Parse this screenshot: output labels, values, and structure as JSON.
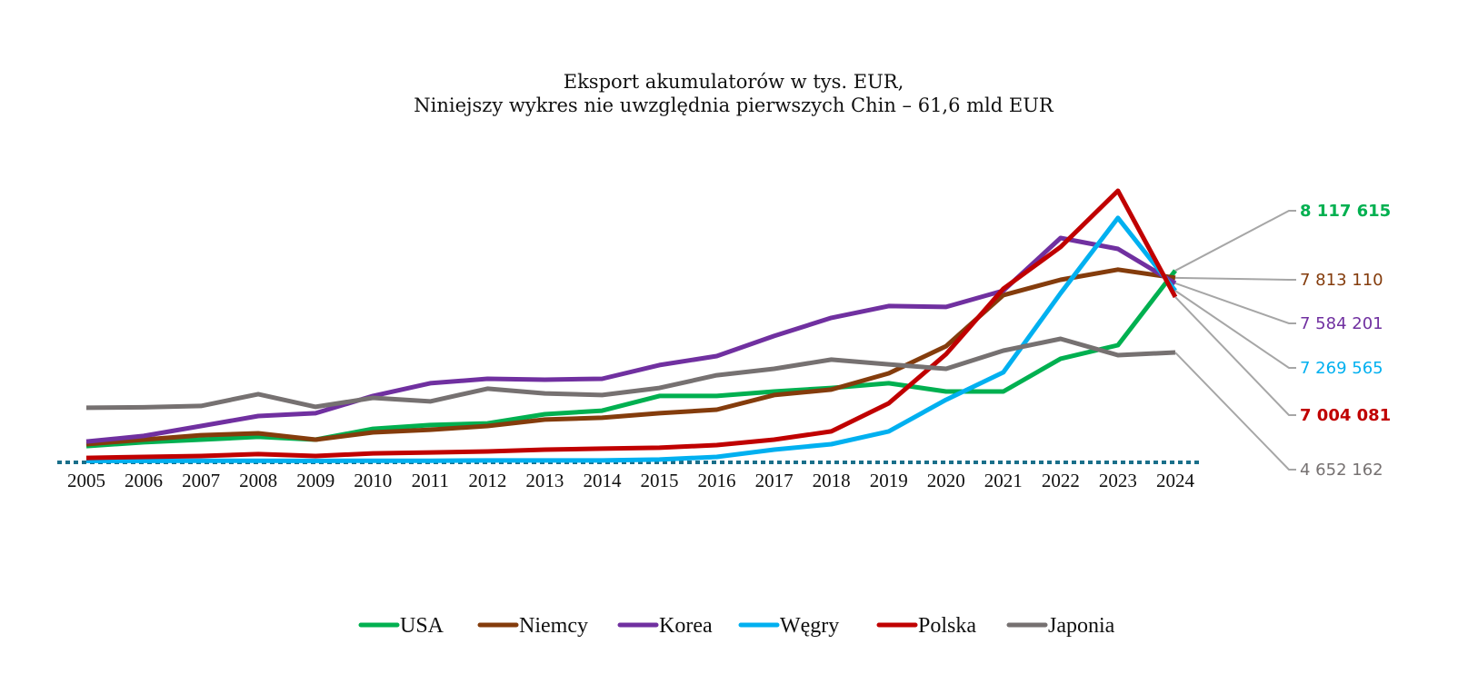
{
  "chart_data": {
    "type": "line",
    "title": "Eksport akumulatorów w tys. EUR,",
    "subtitle": "Niniejszy wykres nie uwzględnia pierwszych Chin – 61,6 mld EUR",
    "xlabel": "",
    "ylabel": "",
    "x": [
      "2005",
      "2006",
      "2007",
      "2008",
      "2009",
      "2010",
      "2011",
      "2012",
      "2013",
      "2014",
      "2015",
      "2016",
      "2017",
      "2018",
      "2019",
      "2020",
      "2021",
      "2022",
      "2023",
      "2024"
    ],
    "ylim": [
      0,
      12000000
    ],
    "grid": false,
    "legend_position": "bottom",
    "baseline_style": "dotted",
    "baseline_color": "#1a6f8a",
    "series": [
      {
        "name": "USA",
        "color": "#00b050",
        "end_label": "8 117 615",
        "end_label_bold": true,
        "values": [
          690000,
          850000,
          960000,
          1080000,
          960000,
          1420000,
          1580000,
          1650000,
          2040000,
          2190000,
          2810000,
          2810000,
          3000000,
          3150000,
          3350000,
          3000000,
          3000000,
          4390000,
          4960000,
          8117615
        ]
      },
      {
        "name": "Niemcy",
        "color": "#843c0c",
        "end_label": "7 813 110",
        "end_label_bold": false,
        "values": [
          770000,
          960000,
          1150000,
          1230000,
          960000,
          1270000,
          1380000,
          1540000,
          1810000,
          1890000,
          2080000,
          2230000,
          2850000,
          3080000,
          3770000,
          4920000,
          7080000,
          7730000,
          8160000,
          7813110
        ]
      },
      {
        "name": "Korea",
        "color": "#7030a0",
        "end_label": "7 584 201",
        "end_label_bold": false,
        "values": [
          880000,
          1120000,
          1540000,
          1960000,
          2080000,
          2810000,
          3350000,
          3540000,
          3500000,
          3540000,
          4120000,
          4500000,
          5350000,
          6120000,
          6620000,
          6580000,
          7270000,
          9500000,
          9040000,
          7584201
        ]
      },
      {
        "name": "Węgry",
        "color": "#00b0f0",
        "end_label": "7 269 565",
        "end_label_bold": false,
        "values": [
          60000,
          60000,
          70000,
          70000,
          60000,
          70000,
          70000,
          80000,
          80000,
          80000,
          120000,
          230000,
          540000,
          770000,
          1310000,
          2650000,
          3810000,
          7160000,
          10350000,
          7269565
        ]
      },
      {
        "name": "Polska",
        "color": "#c00000",
        "end_label": "7 004 081",
        "end_label_bold": true,
        "values": [
          190000,
          230000,
          270000,
          350000,
          270000,
          380000,
          420000,
          460000,
          540000,
          580000,
          620000,
          730000,
          960000,
          1310000,
          2500000,
          4580000,
          7350000,
          9120000,
          11500000,
          7004081
        ]
      },
      {
        "name": "Japonia",
        "color": "#767171",
        "end_label": "4 652 162",
        "end_label_bold": false,
        "values": [
          2310000,
          2330000,
          2390000,
          2890000,
          2350000,
          2730000,
          2580000,
          3120000,
          2920000,
          2850000,
          3150000,
          3690000,
          3960000,
          4350000,
          4150000,
          3960000,
          4730000,
          5230000,
          4540000,
          4652162
        ]
      }
    ]
  }
}
